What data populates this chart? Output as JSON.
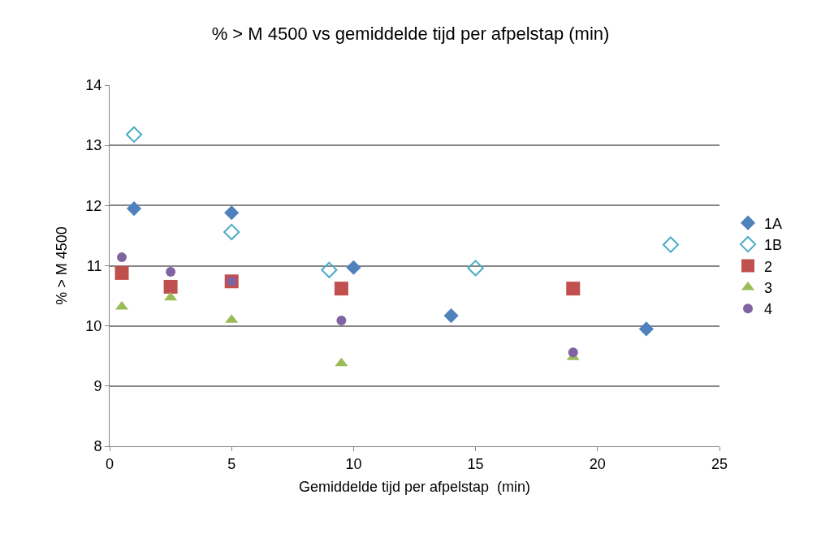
{
  "chart_data": {
    "type": "scatter",
    "title": "% > M 4500 vs gemiddelde tijd per afpelstap (min)",
    "xlabel": "Gemiddelde tijd per afpelstap  (min)",
    "ylabel": "% > M 4500",
    "series": [
      {
        "name": "1A",
        "color": "#4f81bd",
        "marker": "diamond",
        "x": [
          1,
          5,
          10,
          14,
          22
        ],
        "values": [
          11.95,
          11.88,
          10.97,
          10.17,
          9.95
        ]
      },
      {
        "name": "1B",
        "color": "#4bacc6",
        "marker": "diamond-open",
        "x": [
          1,
          5,
          9,
          15,
          23
        ],
        "values": [
          13.18,
          11.56,
          10.93,
          10.96,
          11.35
        ]
      },
      {
        "name": "2",
        "color": "#c0504d",
        "marker": "square",
        "x": [
          0.5,
          2.5,
          5,
          9.5,
          19
        ],
        "values": [
          10.88,
          10.65,
          10.74,
          10.62,
          10.62
        ]
      },
      {
        "name": "3",
        "color": "#9bbb59",
        "marker": "triangle",
        "x": [
          0.5,
          2.5,
          5,
          9.5,
          19
        ],
        "values": [
          10.32,
          10.47,
          10.1,
          9.38,
          9.48
        ]
      },
      {
        "name": "4",
        "color": "#8064a2",
        "marker": "circle",
        "x": [
          0.5,
          2.5,
          5,
          9.5,
          19
        ],
        "values": [
          11.14,
          10.9,
          10.74,
          10.09,
          9.56
        ]
      }
    ],
    "xlim": [
      0,
      25
    ],
    "xticks": [
      0,
      5,
      10,
      15,
      20,
      25
    ],
    "ylim": [
      8,
      14
    ],
    "yticks": [
      8,
      9,
      10,
      11,
      12,
      13,
      14
    ],
    "grid": "y",
    "legend": "right"
  }
}
